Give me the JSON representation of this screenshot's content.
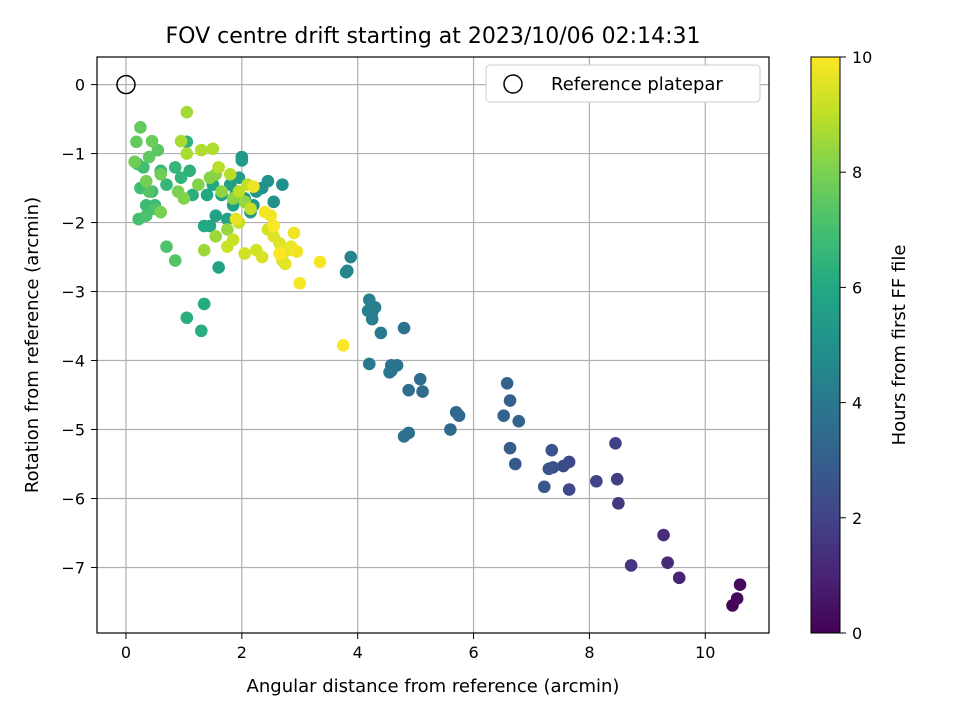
{
  "chart_data": {
    "type": "scatter",
    "title": "FOV centre drift starting at 2023/10/06 02:14:31",
    "xlabel": "Angular distance from reference (arcmin)",
    "ylabel": "Rotation from reference (arcmin)",
    "xlim": [
      -0.5,
      11.1
    ],
    "ylim": [
      -7.95,
      0.4
    ],
    "xticks": [
      0,
      2,
      4,
      6,
      8,
      10
    ],
    "yticks": [
      0,
      -1,
      -2,
      -3,
      -4,
      -5,
      -6,
      -7
    ],
    "grid": true,
    "legend": {
      "placement": "top-right",
      "entries": [
        "Reference platepar"
      ]
    },
    "reference_point": {
      "x": 0,
      "y": 0,
      "marker": "open-circle"
    },
    "colorbar": {
      "label": "Hours from first FF file",
      "range": [
        0,
        10
      ],
      "ticks": [
        0,
        2,
        4,
        6,
        8,
        10
      ],
      "colormap": "viridis"
    },
    "colors": {
      "grid": "#b0b0b0",
      "axis": "#000000",
      "background": "#ffffff"
    },
    "points": [
      [
        10.47,
        -7.55,
        0.1
      ],
      [
        10.55,
        -7.45,
        0.2
      ],
      [
        10.6,
        -7.25,
        0.3
      ],
      [
        9.55,
        -7.15,
        1.0
      ],
      [
        9.35,
        -6.93,
        1.2
      ],
      [
        9.28,
        -6.53,
        1.3
      ],
      [
        8.72,
        -6.97,
        1.5
      ],
      [
        8.5,
        -6.07,
        1.6
      ],
      [
        8.48,
        -5.72,
        1.8
      ],
      [
        8.45,
        -5.2,
        1.9
      ],
      [
        8.12,
        -5.75,
        2.0
      ],
      [
        7.65,
        -5.87,
        2.1
      ],
      [
        7.65,
        -5.47,
        2.2
      ],
      [
        7.55,
        -5.53,
        2.3
      ],
      [
        7.37,
        -5.55,
        2.4
      ],
      [
        7.3,
        -5.57,
        2.5
      ],
      [
        7.35,
        -5.3,
        2.6
      ],
      [
        7.22,
        -5.83,
        2.7
      ],
      [
        6.72,
        -5.5,
        2.8
      ],
      [
        6.63,
        -5.27,
        2.9
      ],
      [
        6.63,
        -4.58,
        3.0
      ],
      [
        6.58,
        -4.33,
        3.1
      ],
      [
        6.78,
        -4.88,
        3.15
      ],
      [
        6.52,
        -4.8,
        3.2
      ],
      [
        5.75,
        -4.8,
        3.3
      ],
      [
        5.7,
        -4.75,
        3.35
      ],
      [
        5.6,
        -5.0,
        3.4
      ],
      [
        5.12,
        -4.45,
        3.5
      ],
      [
        5.08,
        -4.27,
        3.55
      ],
      [
        4.88,
        -4.43,
        3.6
      ],
      [
        4.88,
        -5.05,
        3.65
      ],
      [
        4.8,
        -5.1,
        3.7
      ],
      [
        4.8,
        -3.53,
        3.75
      ],
      [
        4.68,
        -4.07,
        3.8
      ],
      [
        4.58,
        -4.07,
        3.85
      ],
      [
        4.58,
        -4.15,
        3.9
      ],
      [
        4.55,
        -4.17,
        3.92
      ],
      [
        4.2,
        -4.05,
        4.0
      ],
      [
        4.4,
        -3.6,
        4.1
      ],
      [
        4.3,
        -3.23,
        4.15
      ],
      [
        4.25,
        -3.4,
        4.2
      ],
      [
        4.25,
        -3.3,
        4.25
      ],
      [
        4.2,
        -3.12,
        4.3
      ],
      [
        4.18,
        -3.28,
        4.35
      ],
      [
        3.88,
        -2.5,
        4.5
      ],
      [
        3.82,
        -2.7,
        4.55
      ],
      [
        3.8,
        -2.72,
        4.6
      ],
      [
        2.7,
        -1.45,
        5.0
      ],
      [
        2.55,
        -1.7,
        5.0
      ],
      [
        2.45,
        -1.4,
        5.1
      ],
      [
        2.35,
        -1.5,
        5.1
      ],
      [
        2.25,
        -1.55,
        5.2
      ],
      [
        2.2,
        -1.75,
        5.2
      ],
      [
        2.15,
        -1.85,
        5.3
      ],
      [
        2.05,
        -1.65,
        5.3
      ],
      [
        2.0,
        -1.05,
        5.4
      ],
      [
        2.0,
        -1.1,
        5.4
      ],
      [
        1.95,
        -1.35,
        5.5
      ],
      [
        1.9,
        -1.55,
        5.5
      ],
      [
        1.85,
        -1.75,
        5.6
      ],
      [
        1.8,
        -1.45,
        5.6
      ],
      [
        1.75,
        -1.95,
        5.7
      ],
      [
        1.65,
        -1.6,
        5.7
      ],
      [
        1.6,
        -2.65,
        5.8
      ],
      [
        1.55,
        -1.9,
        5.8
      ],
      [
        1.5,
        -1.45,
        5.9
      ],
      [
        1.45,
        -2.05,
        5.9
      ],
      [
        1.4,
        -1.6,
        6.0
      ],
      [
        1.35,
        -2.05,
        6.0
      ],
      [
        1.35,
        -3.18,
        6.1
      ],
      [
        1.3,
        -3.57,
        6.2
      ],
      [
        1.05,
        -3.38,
        6.3
      ],
      [
        1.15,
        -1.6,
        6.3
      ],
      [
        1.1,
        -1.25,
        6.4
      ],
      [
        1.05,
        -0.83,
        6.4
      ],
      [
        0.95,
        -1.35,
        6.5
      ],
      [
        0.85,
        -1.2,
        6.6
      ],
      [
        0.7,
        -1.45,
        6.6
      ],
      [
        0.6,
        -1.25,
        6.7
      ],
      [
        0.5,
        -1.75,
        6.7
      ],
      [
        0.45,
        -1.55,
        6.8
      ],
      [
        0.35,
        -1.75,
        6.8
      ],
      [
        0.3,
        -1.2,
        6.9
      ],
      [
        0.25,
        -1.5,
        6.9
      ],
      [
        0.22,
        -1.95,
        7.0
      ],
      [
        0.2,
        -1.15,
        7.0
      ],
      [
        0.35,
        -1.9,
        7.1
      ],
      [
        0.5,
        -1.8,
        7.1
      ],
      [
        0.7,
        -2.35,
        7.2
      ],
      [
        0.85,
        -2.55,
        7.3
      ],
      [
        0.4,
        -1.55,
        7.3
      ],
      [
        0.55,
        -0.95,
        7.4
      ],
      [
        0.4,
        -1.05,
        7.5
      ],
      [
        0.25,
        -0.62,
        7.6
      ],
      [
        0.18,
        -0.83,
        7.6
      ],
      [
        0.45,
        -0.82,
        7.7
      ],
      [
        0.6,
        -1.3,
        7.8
      ],
      [
        0.15,
        -1.12,
        7.8
      ],
      [
        0.35,
        -1.4,
        7.9
      ],
      [
        0.6,
        -1.85,
        8.0
      ],
      [
        0.9,
        -1.55,
        8.0
      ],
      [
        1.0,
        -1.65,
        8.1
      ],
      [
        1.25,
        -1.45,
        8.1
      ],
      [
        1.45,
        -1.35,
        8.2
      ],
      [
        1.55,
        -1.3,
        8.2
      ],
      [
        1.65,
        -1.55,
        8.3
      ],
      [
        1.85,
        -1.65,
        8.3
      ],
      [
        2.05,
        -1.7,
        8.4
      ],
      [
        1.75,
        -2.1,
        8.4
      ],
      [
        1.55,
        -2.2,
        8.5
      ],
      [
        1.35,
        -2.4,
        8.5
      ],
      [
        1.05,
        -0.4,
        8.6
      ],
      [
        0.95,
        -0.82,
        8.7
      ],
      [
        1.05,
        -1.0,
        8.7
      ],
      [
        1.3,
        -0.95,
        8.8
      ],
      [
        1.5,
        -0.93,
        8.8
      ],
      [
        1.6,
        -1.2,
        8.9
      ],
      [
        1.8,
        -1.3,
        8.9
      ],
      [
        1.95,
        -1.55,
        9.0
      ],
      [
        2.1,
        -1.45,
        9.0
      ],
      [
        2.15,
        -1.8,
        9.1
      ],
      [
        1.95,
        -2.0,
        9.1
      ],
      [
        1.85,
        -2.25,
        9.2
      ],
      [
        1.75,
        -2.35,
        9.2
      ],
      [
        2.05,
        -2.45,
        9.3
      ],
      [
        2.25,
        -2.4,
        9.3
      ],
      [
        2.35,
        -2.5,
        9.4
      ],
      [
        2.45,
        -2.1,
        9.4
      ],
      [
        2.55,
        -2.2,
        9.5
      ],
      [
        2.65,
        -2.3,
        9.5
      ],
      [
        2.7,
        -2.55,
        9.6
      ],
      [
        2.75,
        -2.6,
        9.6
      ],
      [
        2.8,
        -2.4,
        9.7
      ],
      [
        2.85,
        -2.35,
        9.7
      ],
      [
        2.9,
        -2.15,
        9.8
      ],
      [
        2.95,
        -2.42,
        9.8
      ],
      [
        3.0,
        -2.88,
        9.9
      ],
      [
        3.35,
        -2.57,
        9.9
      ],
      [
        3.75,
        -3.78,
        10.0
      ],
      [
        2.4,
        -1.85,
        9.9
      ],
      [
        2.55,
        -2.05,
        9.95
      ],
      [
        2.65,
        -2.45,
        10.0
      ],
      [
        2.5,
        -1.9,
        9.85
      ],
      [
        2.2,
        -1.48,
        9.75
      ],
      [
        1.9,
        -1.95,
        9.65
      ]
    ]
  }
}
